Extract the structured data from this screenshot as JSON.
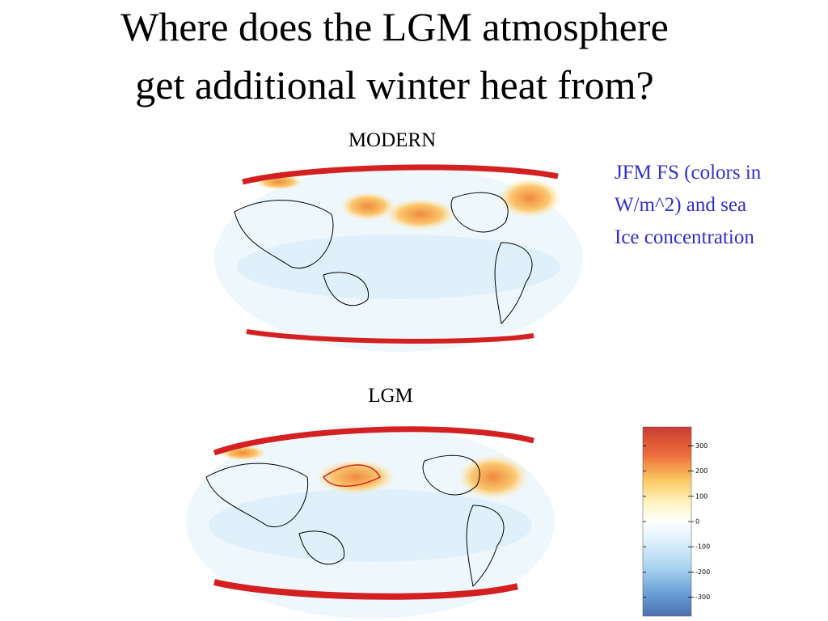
{
  "title_lines": [
    "Where does the LGM atmosphere",
    "get additional winter heat from?"
  ],
  "maps": [
    {
      "label": "MODERN"
    },
    {
      "label": "LGM"
    }
  ],
  "annotation_lines": [
    "JFM FS (colors in",
    "W/m^2) and sea",
    "Ice concentration"
  ],
  "colorbar": {
    "lim": [
      -375,
      375
    ],
    "ticks": [
      300,
      200,
      100,
      0,
      -100,
      -200,
      -300
    ]
  }
}
